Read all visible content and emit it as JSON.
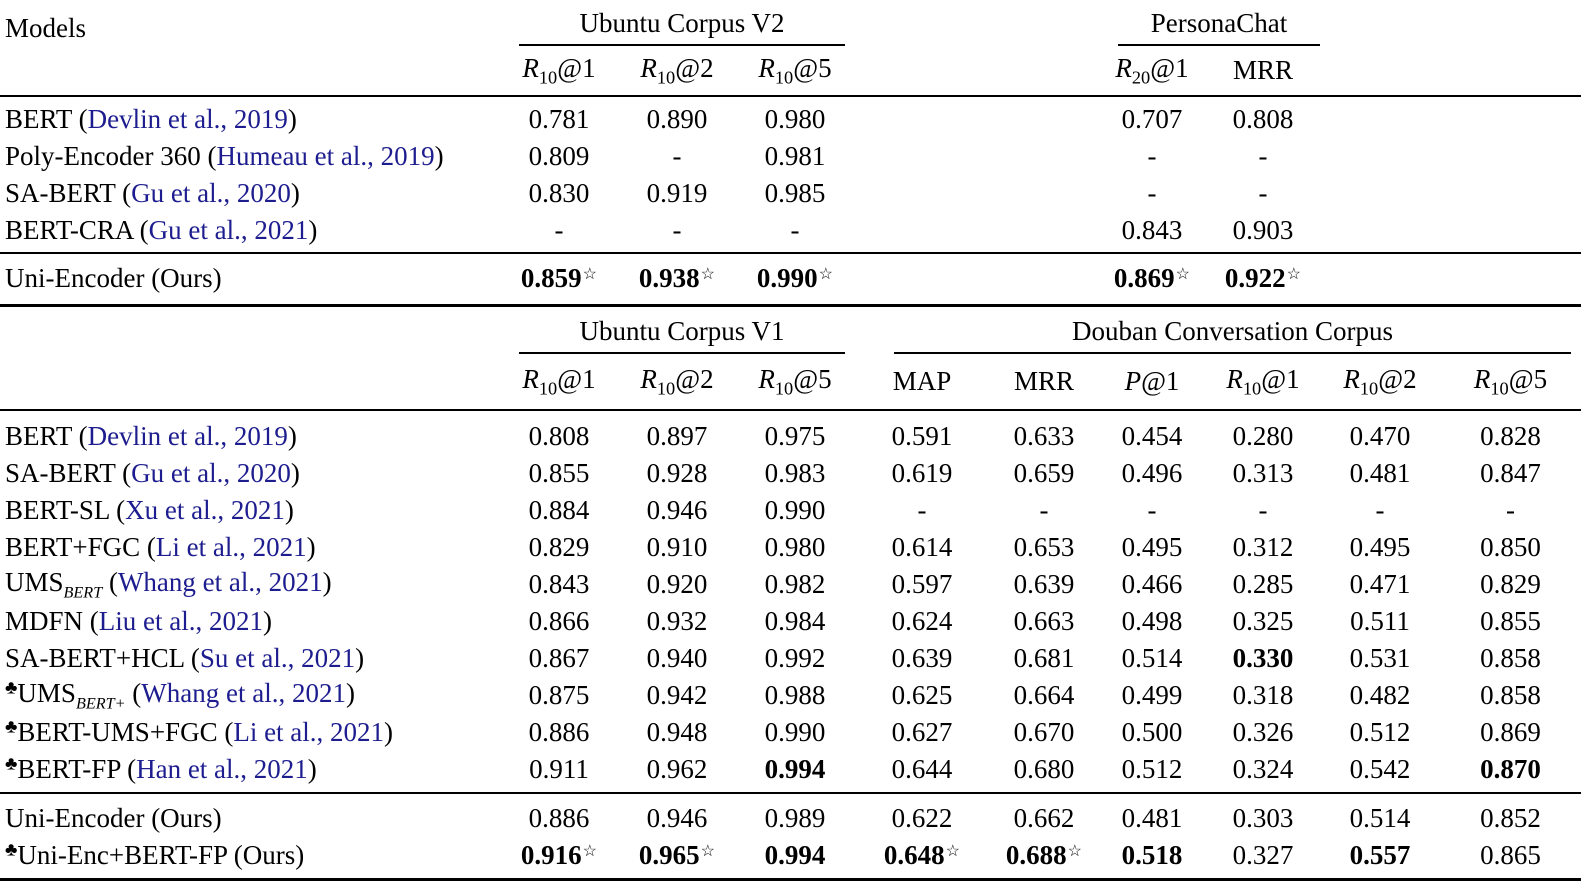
{
  "page": {
    "background": "#ffffff",
    "text_color": "#000000",
    "cite_color": "#1d1d8f"
  },
  "symbols": {
    "club": "♣",
    "star": "☆",
    "dash": "-"
  },
  "chart_data": {
    "type": "table",
    "note": "Benchmark results table from a dialogue-response-selection paper; two stacked sub-tables sharing a Models column."
  },
  "sections": [
    {
      "models_header": "Models",
      "groups": [
        {
          "label": "Ubuntu Corpus V2",
          "metrics": [
            {
              "i": "R",
              "sub": "10",
              "t": "@1"
            },
            {
              "i": "R",
              "sub": "10",
              "t": "@2"
            },
            {
              "i": "R",
              "sub": "10",
              "t": "@5"
            }
          ],
          "cols": [
            1,
            2,
            3
          ]
        },
        {
          "label": "PersonaChat",
          "metrics": [
            {
              "i": "R",
              "sub": "20",
              "t": "@1"
            },
            {
              "t": "MRR"
            }
          ],
          "cols": [
            6,
            7
          ]
        }
      ],
      "value_cols": [
        1,
        2,
        3,
        6,
        7
      ],
      "rows": [
        {
          "name": "BERT",
          "cite": "Devlin et al., 2019",
          "values": [
            "0.781",
            "0.890",
            "0.980",
            "0.707",
            "0.808"
          ]
        },
        {
          "name": "Poly-Encoder 360",
          "cite": "Humeau et al., 2019",
          "values": [
            "0.809",
            "-",
            "0.981",
            "-",
            "-"
          ]
        },
        {
          "name": "SA-BERT",
          "cite": "Gu et al., 2020",
          "values": [
            "0.830",
            "0.919",
            "0.985",
            "-",
            "-"
          ]
        },
        {
          "name": "BERT-CRA",
          "cite": "Gu et al., 2021",
          "values": [
            "-",
            "-",
            "-",
            "0.843",
            "0.903"
          ]
        }
      ],
      "ours_rows": [
        {
          "name": "Uni-Encoder (Ours)",
          "values": [
            "0.859|bs",
            "0.938|bs",
            "0.990|bs",
            "0.869|bs",
            "0.922|bs"
          ]
        }
      ]
    },
    {
      "models_header": "",
      "groups": [
        {
          "label": "Ubuntu Corpus V1",
          "metrics": [
            {
              "i": "R",
              "sub": "10",
              "t": "@1"
            },
            {
              "i": "R",
              "sub": "10",
              "t": "@2"
            },
            {
              "i": "R",
              "sub": "10",
              "t": "@5"
            }
          ],
          "cols": [
            1,
            2,
            3
          ]
        },
        {
          "label": "Douban Conversation Corpus",
          "metrics": [
            {
              "t": "MAP"
            },
            {
              "t": "MRR"
            },
            {
              "i": "P",
              "t": "@1"
            },
            {
              "i": "R",
              "sub": "10",
              "t": "@1"
            },
            {
              "i": "R",
              "sub": "10",
              "t": "@2"
            },
            {
              "i": "R",
              "sub": "10",
              "t": "@5"
            }
          ],
          "cols": [
            4,
            5,
            6,
            7,
            8,
            9
          ]
        }
      ],
      "value_cols": [
        1,
        2,
        3,
        4,
        5,
        6,
        7,
        8,
        9
      ],
      "rows": [
        {
          "name": "BERT",
          "cite": "Devlin et al., 2019",
          "values": [
            "0.808",
            "0.897",
            "0.975",
            "0.591",
            "0.633",
            "0.454",
            "0.280",
            "0.470",
            "0.828"
          ]
        },
        {
          "name": "SA-BERT",
          "cite": "Gu et al., 2020",
          "values": [
            "0.855",
            "0.928",
            "0.983",
            "0.619",
            "0.659",
            "0.496",
            "0.313",
            "0.481",
            "0.847"
          ]
        },
        {
          "name": "BERT-SL",
          "cite": "Xu et al., 2021",
          "values": [
            "0.884",
            "0.946",
            "0.990",
            "-",
            "-",
            "-",
            "-",
            "-",
            "-"
          ]
        },
        {
          "name": "BERT+FGC",
          "cite": "Li et al., 2021",
          "values": [
            "0.829",
            "0.910",
            "0.980",
            "0.614",
            "0.653",
            "0.495",
            "0.312",
            "0.495",
            "0.850"
          ]
        },
        {
          "name": "UMS",
          "name_sub": "BERT",
          "cite": "Whang et al., 2021",
          "values": [
            "0.843",
            "0.920",
            "0.982",
            "0.597",
            "0.639",
            "0.466",
            "0.285",
            "0.471",
            "0.829"
          ]
        },
        {
          "name": "MDFN",
          "cite": "Liu et al., 2021",
          "values": [
            "0.866",
            "0.932",
            "0.984",
            "0.624",
            "0.663",
            "0.498",
            "0.325",
            "0.511",
            "0.855"
          ]
        },
        {
          "name": "SA-BERT+HCL",
          "cite": "Su et al., 2021",
          "values": [
            "0.867",
            "0.940",
            "0.992",
            "0.639",
            "0.681",
            "0.514",
            "0.330|b",
            "0.531",
            "0.858"
          ]
        },
        {
          "name": "UMS",
          "name_sub": "BERT+",
          "club": true,
          "cite": "Whang et al., 2021",
          "values": [
            "0.875",
            "0.942",
            "0.988",
            "0.625",
            "0.664",
            "0.499",
            "0.318",
            "0.482",
            "0.858"
          ]
        },
        {
          "name": "BERT-UMS+FGC",
          "club": true,
          "cite": "Li et al., 2021",
          "values": [
            "0.886",
            "0.948",
            "0.990",
            "0.627",
            "0.670",
            "0.500",
            "0.326",
            "0.512",
            "0.869"
          ]
        },
        {
          "name": "BERT-FP",
          "club": true,
          "cite": "Han et al., 2021",
          "values": [
            "0.911",
            "0.962",
            "0.994|b",
            "0.644",
            "0.680",
            "0.512",
            "0.324",
            "0.542",
            "0.870|b"
          ]
        }
      ],
      "ours_rows": [
        {
          "name": "Uni-Encoder (Ours)",
          "values": [
            "0.886",
            "0.946",
            "0.989",
            "0.622",
            "0.662",
            "0.481",
            "0.303",
            "0.514",
            "0.852"
          ]
        },
        {
          "name": "Uni-Enc+BERT-FP (Ours)",
          "club": true,
          "values": [
            "0.916|bs",
            "0.965|bs",
            "0.994|b",
            "0.648|bs",
            "0.688|bs",
            "0.518|b",
            "0.327",
            "0.557|b",
            "0.865"
          ]
        }
      ]
    }
  ]
}
